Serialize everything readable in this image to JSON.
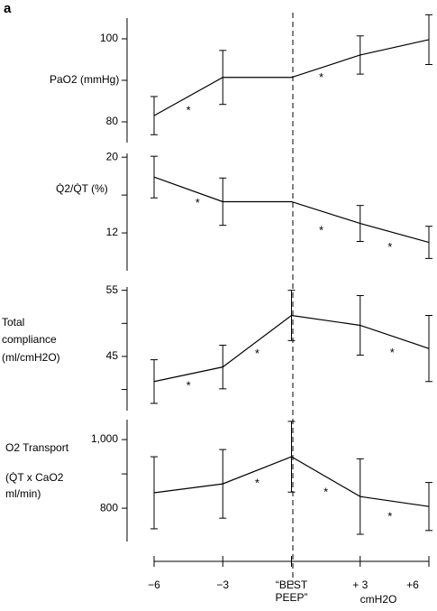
{
  "panel_label": "a",
  "chart_data": [
    {
      "type": "line",
      "ylabel": [
        "PaO2 (mmHg)"
      ],
      "color": "#000000",
      "x": [
        -6,
        -3,
        0,
        3,
        6
      ],
      "values": [
        81.5,
        90.7,
        90.7,
        96.1,
        99.8
      ],
      "errors": [
        4.6,
        6.5,
        null,
        4.6,
        6
      ],
      "xlim": [
        -6,
        6
      ],
      "ylim": [
        75,
        105
      ],
      "yticks": [
        80,
        100
      ],
      "yminor": [
        90
      ],
      "annotations": [
        {
          "x": -4.5,
          "y": 83.2,
          "text": "*"
        },
        {
          "x": 1.3,
          "y": 91.2,
          "text": "*"
        }
      ]
    },
    {
      "type": "line",
      "ylabel": [
        "Q̇2/Q̇T (%)"
      ],
      "color": "#000000",
      "x": [
        -6,
        -3,
        0,
        3,
        6
      ],
      "values": [
        17.9,
        15.3,
        15.3,
        13.0,
        11.0
      ],
      "errors": [
        2.2,
        2.5,
        null,
        1.9,
        1.7
      ],
      "xlim": [
        -6,
        6
      ],
      "ylim": [
        8,
        20.4
      ],
      "yticks": [
        12,
        20
      ],
      "yminor": [
        16
      ],
      "annotations": [
        {
          "x": -4.1,
          "y": 15.4,
          "text": "*"
        },
        {
          "x": 1.3,
          "y": 12.5,
          "text": "*"
        },
        {
          "x": 4.3,
          "y": 10.7,
          "text": "*"
        }
      ]
    },
    {
      "type": "line",
      "ylabel": [
        "Total",
        "compliance",
        "(ml/cmH2O)"
      ],
      "color": "#000000",
      "x": [
        -6,
        -3,
        0,
        3,
        6
      ],
      "values": [
        41.2,
        43.4,
        51.2,
        49.7,
        46.2
      ],
      "errors": [
        3.3,
        3.3,
        3.8,
        4.5,
        5
      ],
      "xlim": [
        -6,
        6
      ],
      "ylim": [
        36.8,
        55.5
      ],
      "yticks": [
        45,
        55
      ],
      "yminor": [
        40,
        50
      ],
      "annotations": [
        {
          "x": -4.5,
          "y": 40.9,
          "text": "*"
        },
        {
          "x": -1.5,
          "y": 45.7,
          "text": "*"
        },
        {
          "x": 4.4,
          "y": 45.9,
          "text": "*"
        }
      ]
    },
    {
      "type": "line",
      "ylabel": [
        "O2 Transport",
        "(Q̇T x CaO2",
        "ml/min)"
      ],
      "color": "#000000",
      "x": [
        -6,
        -3,
        0,
        3,
        6
      ],
      "values": [
        845,
        871,
        950,
        834,
        805
      ],
      "errors": [
        105,
        100,
        103,
        110,
        70
      ],
      "xlim": [
        -6,
        6
      ],
      "ylim": [
        703,
        1058
      ],
      "yticks": [
        800,
        {
          "value": 1000,
          "label": "1,000"
        }
      ],
      "yminor": [
        900
      ],
      "annotations": [
        {
          "x": -1.5,
          "y": 879,
          "text": "*"
        },
        {
          "x": 1.5,
          "y": 853,
          "text": "*"
        },
        {
          "x": 4.3,
          "y": 782,
          "text": "*"
        }
      ],
      "xticks": [
        {
          "value": -6,
          "label": "−6"
        },
        {
          "value": -3,
          "label": "−3"
        },
        {
          "value": 0,
          "label": "“BEST PEEP”"
        },
        {
          "value": 3,
          "label": "+ 3"
        },
        {
          "value": 6,
          "label": "+6"
        }
      ],
      "xlabel": "cmH2O"
    }
  ]
}
